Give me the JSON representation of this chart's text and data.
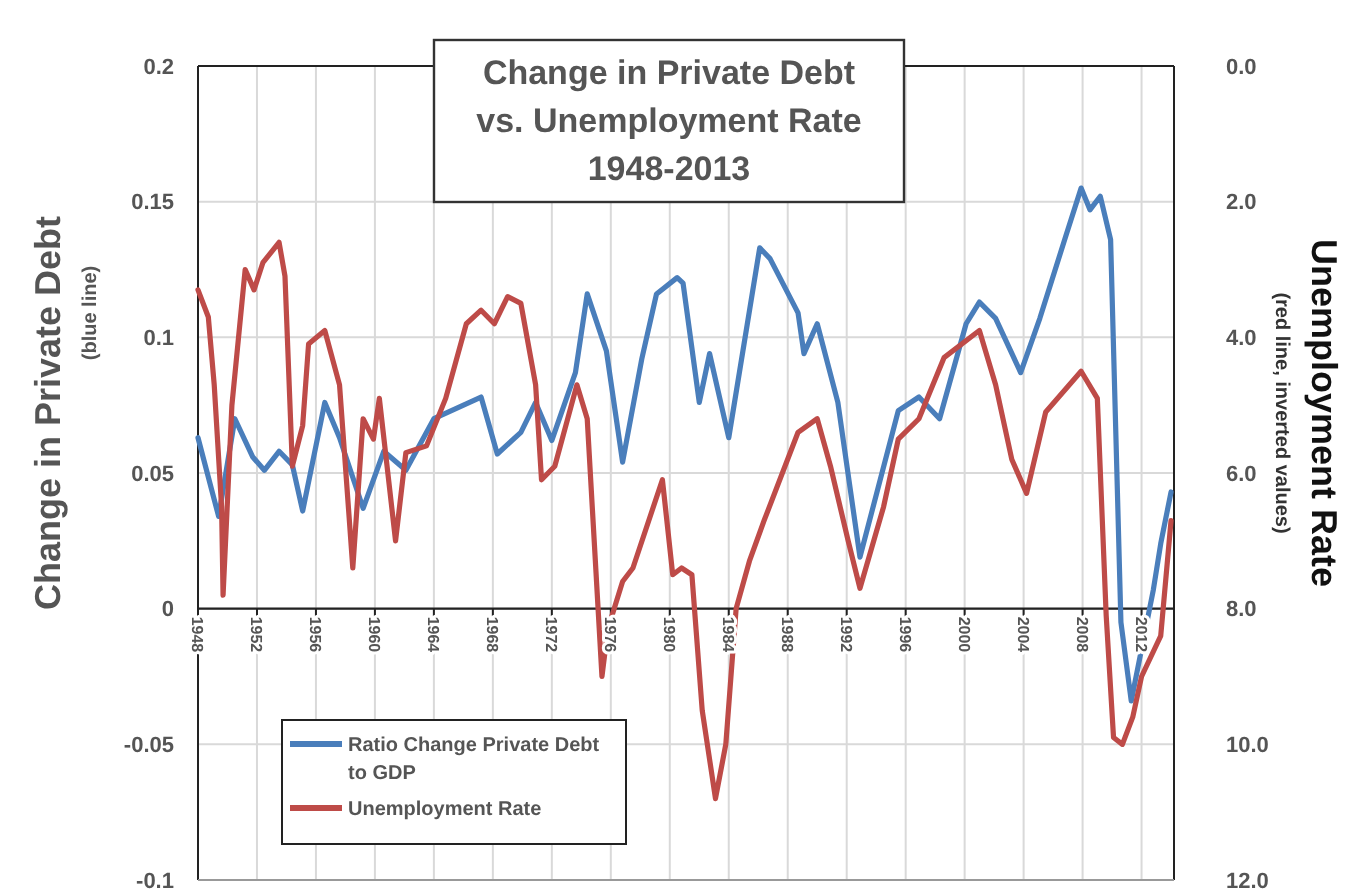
{
  "chart_data": {
    "type": "line",
    "title": "Change in Private Debt\nvs. Unemployment Rate\n1948-2013",
    "ylabel": "Change in Private Debt\n(blue line)",
    "y2label": "Unemployment Rate\n(red line, inverted values)",
    "xlim": [
      1948,
      2014.2
    ],
    "xticks": [
      1948,
      1952,
      1956,
      1960,
      1964,
      1968,
      1972,
      1976,
      1980,
      1984,
      1988,
      1992,
      1996,
      2000,
      2004,
      2008,
      2012
    ],
    "ylim": [
      -0.1,
      0.2
    ],
    "yticks": [
      -0.1,
      -0.05,
      0,
      0.05,
      0.1,
      0.15,
      0.2
    ],
    "y2lim": [
      12,
      0
    ],
    "y2ticks": [
      {
        "value": 0,
        "label": "0.0"
      },
      {
        "value": 2,
        "label": "2.0"
      },
      {
        "value": 4,
        "label": "4.0"
      },
      {
        "value": 6,
        "label": "6.0"
      },
      {
        "value": 8,
        "label": "8.0"
      },
      {
        "value": 10,
        "label": "10.0"
      },
      {
        "value": 12,
        "label": "12.0"
      }
    ],
    "grid": true,
    "legend": "bottom left",
    "line_style": "solid",
    "marker": "none",
    "series": [
      {
        "name": "Ratio Change Private Debt to GDP",
        "color": "#4a7ebb",
        "x": [
          1948,
          1949.4,
          1950.5,
          1951.7,
          1952.5,
          1953.5,
          1954.4,
          1955.1,
          1956.6,
          1957.6,
          1959.2,
          1960.6,
          1962.1,
          1964,
          1967.2,
          1968.3,
          1969.9,
          1970.9,
          1972,
          1973.6,
          1974.4,
          1975.7,
          1976.8,
          1978.1,
          1979.1,
          1980.5,
          1980.9,
          1982,
          1982.7,
          1984,
          1986.1,
          1986.8,
          1988.7,
          1989.1,
          1990,
          1991.4,
          1992.9,
          1995.5,
          1996.9,
          1998.3,
          2000.1,
          2001,
          2002.1,
          2003.8,
          2005.1,
          2006.9,
          2007.9,
          2008.5,
          2009.2,
          2009.9,
          2010.6,
          2011.3,
          2012.8,
          2013.3,
          2014
        ],
        "values": [
          0.063,
          0.034,
          0.07,
          0.056,
          0.051,
          0.058,
          0.053,
          0.036,
          0.076,
          0.063,
          0.037,
          0.058,
          0.051,
          0.07,
          0.078,
          0.057,
          0.065,
          0.076,
          0.062,
          0.087,
          0.116,
          0.095,
          0.054,
          0.092,
          0.116,
          0.122,
          0.12,
          0.076,
          0.094,
          0.063,
          0.133,
          0.129,
          0.109,
          0.094,
          0.105,
          0.076,
          0.019,
          0.073,
          0.078,
          0.07,
          0.105,
          0.113,
          0.107,
          0.087,
          0.107,
          0.138,
          0.155,
          0.147,
          0.152,
          0.136,
          -0.005,
          -0.034,
          0.007,
          0.024,
          0.043
        ]
      },
      {
        "name": "Unemployment Rate",
        "color": "#be4b48",
        "axis": "y2",
        "x": [
          1948,
          1948.7,
          1949.1,
          1949.6,
          1949.7,
          1950.3,
          1951.2,
          1951.8,
          1952.4,
          1953.5,
          1953.9,
          1954.4,
          1955.1,
          1955.5,
          1956.6,
          1957.6,
          1958.5,
          1959.2,
          1959.9,
          1960.3,
          1961.4,
          1962.1,
          1963.5,
          1964.8,
          1966.2,
          1967.2,
          1968.1,
          1969,
          1969.9,
          1970.9,
          1971.3,
          1972.2,
          1973.7,
          1974.4,
          1975.4,
          1975.8,
          1976.8,
          1977.5,
          1979.5,
          1980.2,
          1980.8,
          1981.5,
          1982.2,
          1983.1,
          1983.8,
          1984.5,
          1985.4,
          1986.4,
          1988.7,
          1990,
          1990.9,
          1992.1,
          1992.9,
          1994.5,
          1995.5,
          1996.9,
          1998.6,
          2001,
          2002.1,
          2003.2,
          2004.2,
          2005.5,
          2007.9,
          2009,
          2009.6,
          2010.1,
          2010.7,
          2011.4,
          2012,
          2013.3,
          2014
        ],
        "values": [
          3.3,
          3.7,
          4.7,
          6.5,
          7.8,
          5,
          3,
          3.3,
          2.9,
          2.6,
          3.1,
          5.9,
          5.3,
          4.1,
          3.9,
          4.7,
          7.4,
          5.2,
          5.5,
          4.9,
          7,
          5.7,
          5.6,
          4.9,
          3.8,
          3.6,
          3.8,
          3.4,
          3.5,
          4.7,
          6.1,
          5.9,
          4.7,
          5.2,
          9,
          8.3,
          7.6,
          7.4,
          6.1,
          7.5,
          7.4,
          7.5,
          9.5,
          10.8,
          10,
          8,
          7.3,
          6.7,
          5.4,
          5.2,
          5.9,
          7,
          7.7,
          6.5,
          5.5,
          5.2,
          4.3,
          3.9,
          4.7,
          5.8,
          6.3,
          5.1,
          4.5,
          4.9,
          8.1,
          9.9,
          10,
          9.6,
          9,
          8.4,
          6.7
        ]
      }
    ]
  }
}
